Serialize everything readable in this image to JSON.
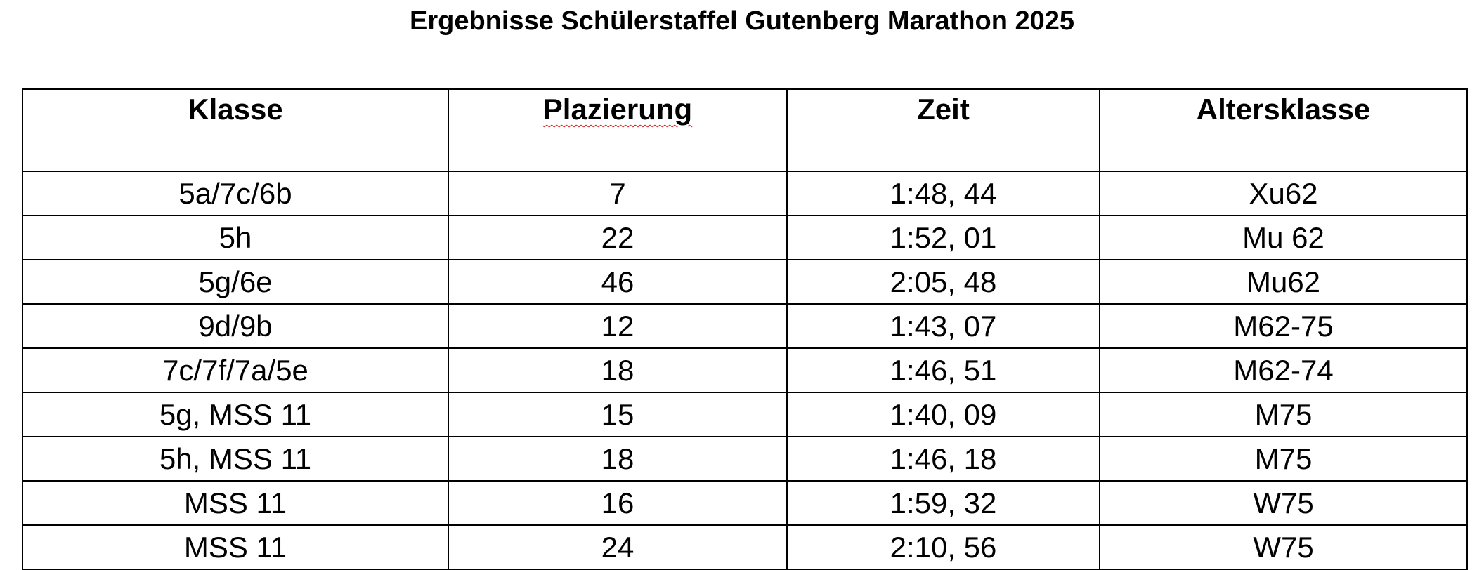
{
  "document": {
    "title": "Ergebnisse Schülerstaffel Gutenberg Marathon 2025"
  },
  "table": {
    "headers": {
      "klasse": "Klasse",
      "plazierung": "Plazierung",
      "zeit": "Zeit",
      "altersklasse": "Altersklasse"
    },
    "rows": [
      {
        "klasse": "5a/7c/6b",
        "plazierung": "7",
        "zeit": "1:48, 44",
        "altersklasse": "Xu62"
      },
      {
        "klasse": "5h",
        "plazierung": "22",
        "zeit": "1:52, 01",
        "altersklasse": "Mu 62"
      },
      {
        "klasse": "5g/6e",
        "plazierung": "46",
        "zeit": "2:05, 48",
        "altersklasse": "Mu62"
      },
      {
        "klasse": "9d/9b",
        "plazierung": "12",
        "zeit": "1:43, 07",
        "altersklasse": "M62-75"
      },
      {
        "klasse": "7c/7f/7a/5e",
        "plazierung": "18",
        "zeit": "1:46, 51",
        "altersklasse": "M62-74"
      },
      {
        "klasse": "5g, MSS 11",
        "plazierung": "15",
        "zeit": "1:40, 09",
        "altersklasse": "M75"
      },
      {
        "klasse": "5h, MSS 11",
        "plazierung": "18",
        "zeit": "1:46, 18",
        "altersklasse": "M75"
      },
      {
        "klasse": "MSS 11",
        "plazierung": "16",
        "zeit": "1:59, 32",
        "altersklasse": "W75"
      },
      {
        "klasse": "MSS 11",
        "plazierung": "24",
        "zeit": "2:10, 56",
        "altersklasse": "W75"
      }
    ]
  },
  "colors": {
    "text": "#000000",
    "border": "#000000",
    "background": "#ffffff",
    "spellcheck_underline": "#d11a1a"
  }
}
